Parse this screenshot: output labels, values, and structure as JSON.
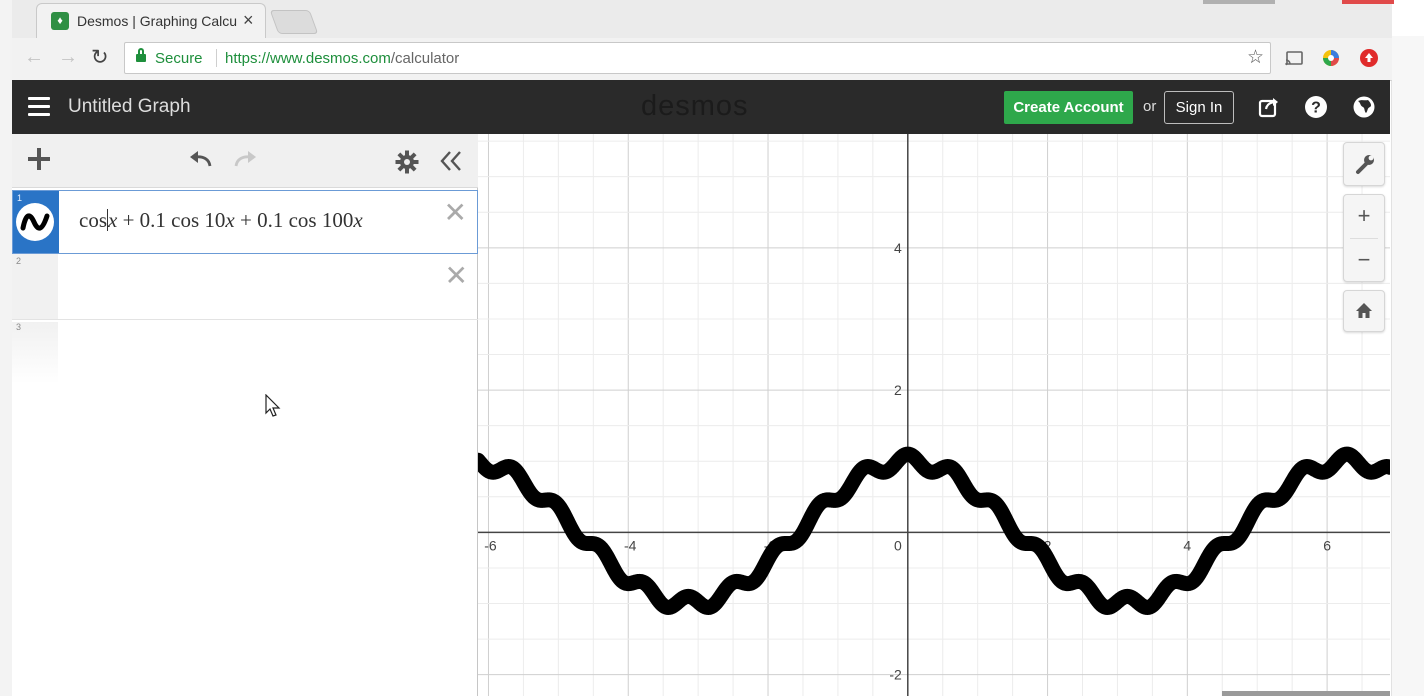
{
  "browser": {
    "tab_title": "Desmos | Graphing Calcu",
    "tab_close": "×",
    "secure_label": "Secure",
    "url_host": "https://www.desmos.com",
    "url_path": "/calculator"
  },
  "header": {
    "graph_title": "Untitled Graph",
    "logo": "desmos",
    "create_account": "Create Account",
    "or": "or",
    "sign_in": "Sign In"
  },
  "expressions": [
    {
      "index": "1",
      "latex_parts": [
        "cos",
        "x",
        " + 0.1 cos 10",
        "x",
        " + 0.1 cos 100",
        "x"
      ]
    },
    {
      "index": "2"
    },
    {
      "index": "3"
    }
  ],
  "graph": {
    "zoom_in": "+",
    "zoom_out": "−",
    "x_tick_labels": [
      "-6",
      "-4",
      "-2",
      "0",
      "2",
      "4",
      "6"
    ],
    "y_tick_labels": [
      "4",
      "2",
      "-2"
    ]
  },
  "chart_data": {
    "type": "line",
    "expression": "cos x + 0.1 cos 10x + 0.1 cos 100x",
    "xlim": [
      -6.15,
      6.9
    ],
    "ylim": [
      -2.3,
      5.6
    ],
    "grid": true,
    "series": [
      {
        "color": "#000000",
        "x": [
          -6.0,
          -5.0,
          -4.0,
          -3.0,
          -2.0,
          -1.0,
          0.0,
          1.0,
          2.0,
          3.0,
          4.0,
          5.0,
          6.0
        ],
        "y": [
          1.02,
          0.38,
          -0.5,
          -0.85,
          -0.38,
          0.55,
          1.2,
          0.55,
          -0.38,
          -0.85,
          -0.5,
          0.38,
          1.02
        ]
      }
    ]
  },
  "colors": {
    "create_account_bg": "#2ea84b",
    "appbar_bg": "#2a2a2a",
    "secure_green": "#1e8f3c",
    "selected_row": "#2a74c6"
  }
}
